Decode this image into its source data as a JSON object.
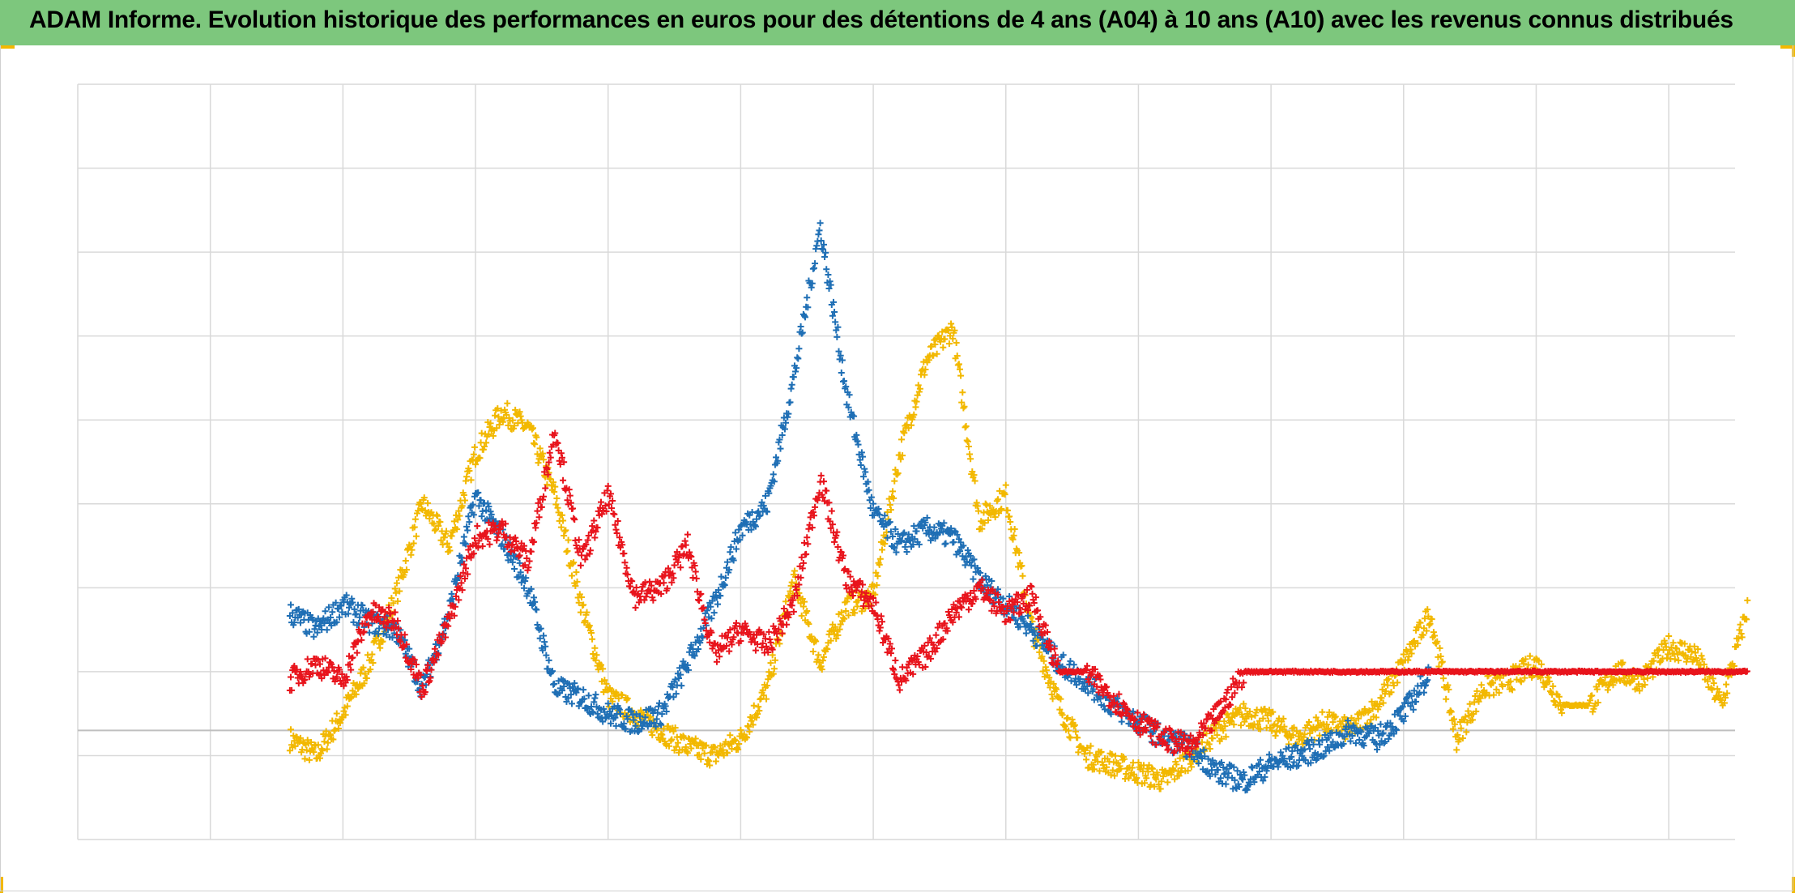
{
  "title": "ADAM Informe. Evolution historique des performances en euros pour des détentions de 4 ans (A04) à 10 ans (A10) avec les revenus connus distribués",
  "colors": {
    "header_bg": "#7dc77d",
    "accent": "#f2b800",
    "grid": "#d9d9d9",
    "zero_line": "#bfbfbf"
  },
  "chart_data": {
    "type": "scatter",
    "marker": "plus",
    "grid": true,
    "legend": "none",
    "x_grid_lines": 13,
    "y_grid_lines": 9,
    "ylim": [
      -1.3,
      7.7
    ],
    "x": [
      1.6,
      1.8,
      2.0,
      2.2,
      2.4,
      2.6,
      2.8,
      3.0,
      3.2,
      3.4,
      3.6,
      3.8,
      4.0,
      4.2,
      4.4,
      4.6,
      4.8,
      5.0,
      5.2,
      5.4,
      5.6,
      5.8,
      6.0,
      6.2,
      6.4,
      6.6,
      6.8,
      7.0,
      7.2,
      7.4,
      7.6,
      7.8,
      8.0,
      8.2,
      8.4,
      8.6,
      8.8,
      9.0,
      9.2,
      9.4,
      9.6,
      9.8,
      10.0,
      10.2,
      10.4,
      10.6,
      10.8,
      11.0,
      11.2,
      11.4,
      11.6,
      11.8,
      12.0,
      12.2,
      12.4,
      12.6
    ],
    "series": [
      {
        "color": "#f2b800",
        "values": [
          -0.1,
          -0.3,
          0.2,
          0.8,
          1.6,
          2.7,
          2.2,
          3.3,
          3.8,
          3.6,
          2.8,
          1.5,
          0.4,
          0.2,
          0.0,
          -0.2,
          -0.3,
          -0.1,
          0.5,
          1.8,
          0.8,
          1.5,
          1.6,
          3.3,
          4.4,
          4.8,
          2.5,
          2.8,
          1.2,
          0.3,
          -0.3,
          -0.4,
          -0.5,
          -0.6,
          -0.3,
          0.0,
          0.2,
          0.1,
          -0.1,
          0.1,
          0.0,
          0.3,
          0.8,
          1.4,
          -0.1,
          0.5,
          0.6,
          0.8,
          0.3,
          0.3,
          0.7,
          0.6,
          1.0,
          0.9,
          0.3,
          1.5
        ]
      },
      {
        "color": "#1f6fb5",
        "values": [
          1.4,
          1.2,
          1.5,
          1.3,
          1.2,
          0.5,
          1.4,
          2.8,
          2.3,
          1.7,
          0.5,
          0.4,
          0.2,
          0.1,
          0.2,
          0.8,
          1.5,
          2.4,
          2.7,
          4.2,
          6.0,
          4.0,
          2.6,
          2.2,
          2.4,
          2.3,
          1.8,
          1.5,
          1.2,
          0.8,
          0.6,
          0.3,
          0.1,
          -0.1,
          -0.2,
          -0.5,
          -0.6,
          -0.4,
          -0.3,
          -0.2,
          0.0,
          -0.1,
          0.2,
          0.7
        ]
      },
      {
        "color": "#e8141c",
        "values": [
          0.6,
          0.8,
          0.6,
          1.4,
          1.3,
          0.5,
          1.3,
          2.3,
          2.4,
          2.0,
          3.6,
          2.0,
          2.8,
          1.6,
          1.7,
          2.2,
          0.9,
          1.2,
          1.0,
          1.5,
          3.0,
          1.8,
          1.5,
          0.6,
          0.9,
          1.4,
          1.7,
          1.4,
          1.6,
          0.7,
          0.7,
          0.4,
          0.1,
          -0.1,
          -0.2,
          0.2,
          0.7,
          0.7,
          0.7,
          0.7,
          0.7,
          0.7,
          0.7,
          0.7,
          0.7,
          0.7,
          0.7,
          0.7,
          0.7,
          0.7,
          0.7,
          0.7,
          0.7,
          0.7,
          0.7,
          0.7
        ]
      }
    ]
  }
}
